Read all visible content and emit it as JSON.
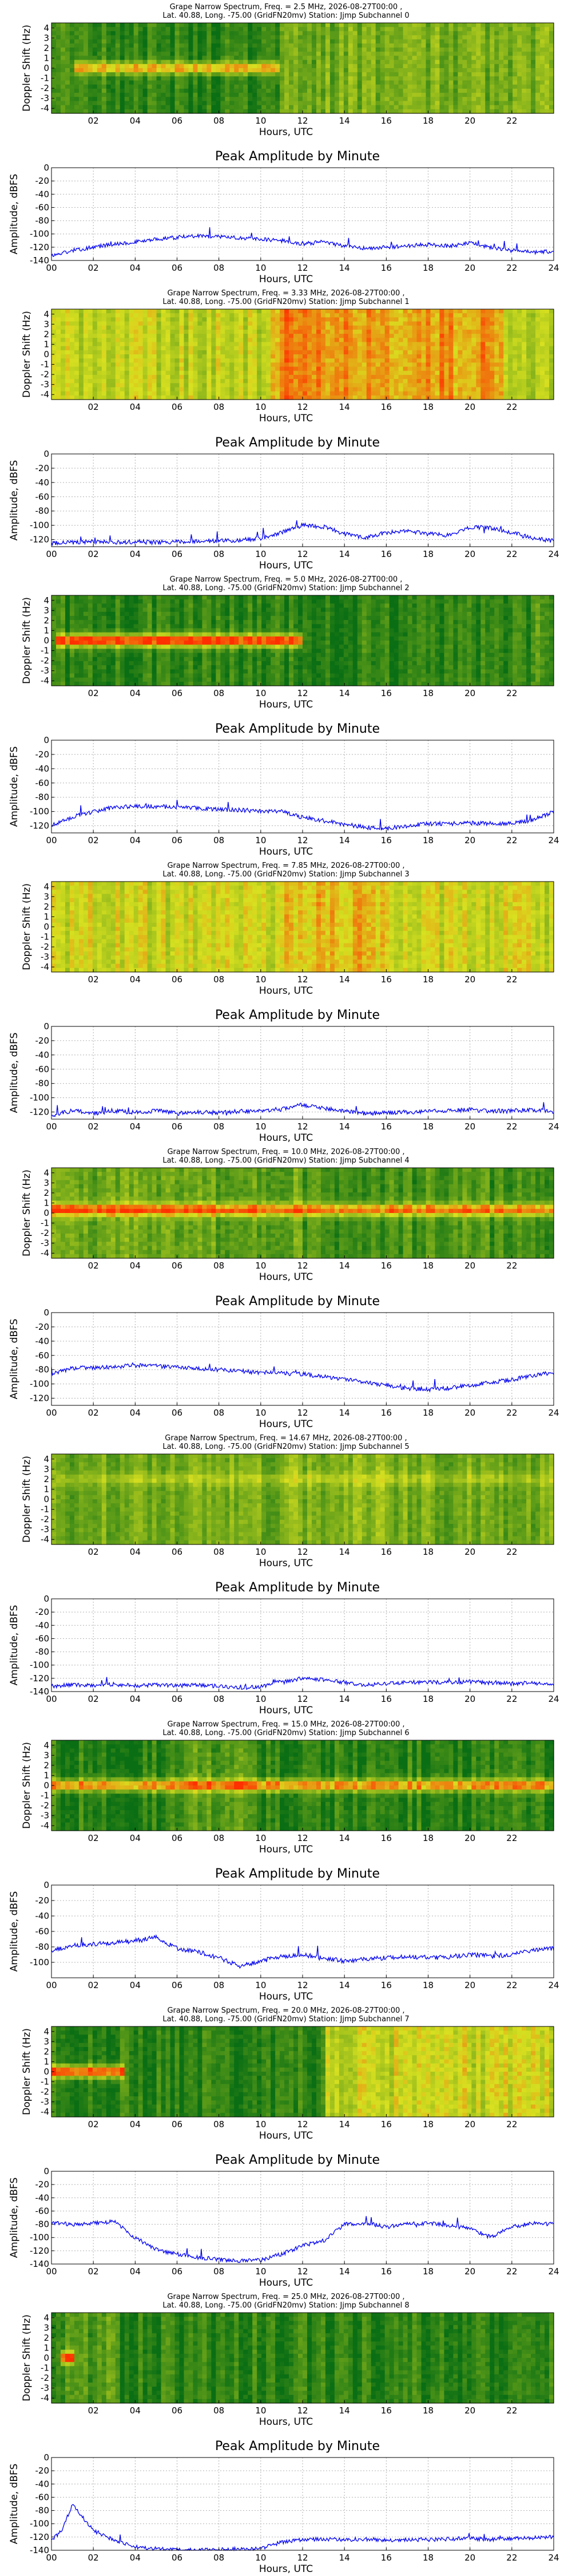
{
  "colors": {
    "line": "#0000ee",
    "grid": "#b0b0b0",
    "spectrum_low": "#0a6e14",
    "spectrum_mid": "#d8e020",
    "spectrum_high": "#ff3000"
  },
  "line_panel_title": "Peak Amplitude by Minute",
  "line_ylabel": "Amplitude, dBFS",
  "xlabel": "Hours, UTC",
  "spec_ylabel": "Doppler Shift (Hz)",
  "spec_xticks": [
    "02",
    "04",
    "06",
    "08",
    "10",
    "12",
    "14",
    "16",
    "18",
    "20",
    "22"
  ],
  "line_xticks": [
    "00",
    "02",
    "04",
    "06",
    "08",
    "10",
    "12",
    "14",
    "16",
    "18",
    "20",
    "22",
    "24"
  ],
  "channels": [
    {
      "title1": "Grape Narrow Spectrum, Freq. = 2.5 MHz, 2026-08-27T00:00 ,",
      "title2": "Lat.  40.88, Long. -75.00 (GridFN20mv) Station: Jjmp Subchannel 0",
      "spec_yticks": [
        "4",
        "3",
        "2",
        "1",
        "0",
        "-1",
        "-2",
        "-3",
        "-4"
      ],
      "line_yticks": [
        "0",
        "-20",
        "-40",
        "-60",
        "-80",
        "-100",
        "-120",
        "-140"
      ],
      "spectrum": {
        "base": 0.12,
        "band_start": 1.0,
        "band_end": 11.0,
        "band_strength": 0.65,
        "band_offset": 0.0,
        "active_start": 11.0,
        "active_end": 24,
        "active_level": 0.32
      },
      "chart_data": {
        "type": "line",
        "xlabel": "Hours, UTC",
        "ylabel": "Amplitude, dBFS",
        "xlim": [
          0,
          24
        ],
        "ylim": [
          -140,
          0
        ],
        "x": [
          0,
          1,
          2,
          3,
          4,
          5,
          6,
          7,
          8,
          9,
          10,
          11,
          12,
          13,
          14,
          15,
          16,
          17,
          18,
          19,
          20,
          21,
          22,
          23,
          24
        ],
        "values": [
          -133,
          -125,
          -120,
          -115,
          -112,
          -108,
          -105,
          -103,
          -104,
          -106,
          -108,
          -110,
          -115,
          -112,
          -118,
          -122,
          -120,
          -118,
          -116,
          -118,
          -114,
          -120,
          -125,
          -128,
          -126
        ]
      }
    },
    {
      "title1": "Grape Narrow Spectrum, Freq. = 3.33 MHz, 2026-08-27T00:00 ,",
      "title2": "Lat.  40.88, Long. -75.00 (GridFN20mv) Station: Jjmp Subchannel 1",
      "spec_yticks": [
        "4",
        "3",
        "2",
        "1",
        "0",
        "-1",
        "-2",
        "-3",
        "-4"
      ],
      "line_yticks": [
        "0",
        "-20",
        "-40",
        "-60",
        "-80",
        "-100",
        "-120"
      ],
      "spectrum": {
        "base": 0.52,
        "band_start": 0,
        "band_end": 0,
        "band_strength": 0,
        "band_offset": 0,
        "active_start": 10.5,
        "active_end": 21.5,
        "active_level": 0.78
      },
      "chart_data": {
        "type": "line",
        "xlabel": "Hours, UTC",
        "ylabel": "Amplitude, dBFS",
        "xlim": [
          0,
          24
        ],
        "ylim": [
          -130,
          0
        ],
        "x": [
          0,
          1,
          2,
          3,
          4,
          5,
          6,
          7,
          8,
          9,
          10,
          11,
          12,
          13,
          14,
          15,
          16,
          17,
          18,
          19,
          20,
          21,
          22,
          23,
          24
        ],
        "values": [
          -125,
          -124,
          -123,
          -124,
          -123,
          -124,
          -123,
          -122,
          -122,
          -121,
          -118,
          -110,
          -100,
          -102,
          -112,
          -118,
          -110,
          -108,
          -112,
          -114,
          -102,
          -104,
          -110,
          -118,
          -122
        ]
      }
    },
    {
      "title1": "Grape Narrow Spectrum, Freq. = 5.0 MHz, 2026-08-27T00:00 ,",
      "title2": "Lat.  40.88, Long. -75.00 (GridFN20mv) Station: Jjmp Subchannel 2",
      "spec_yticks": [
        "4",
        "3",
        "2",
        "1",
        "0",
        "-1",
        "-2",
        "-3",
        "-4"
      ],
      "line_yticks": [
        "0",
        "-20",
        "-40",
        "-60",
        "-80",
        "-100",
        "-120"
      ],
      "spectrum": {
        "base": 0.1,
        "band_start": 0.3,
        "band_end": 12.0,
        "band_strength": 0.95,
        "band_offset": 0.0,
        "active_start": 23.0,
        "active_end": 24,
        "active_level": 0.2
      },
      "chart_data": {
        "type": "line",
        "xlabel": "Hours, UTC",
        "ylabel": "Amplitude, dBFS",
        "xlim": [
          0,
          24
        ],
        "ylim": [
          -130,
          0
        ],
        "x": [
          0,
          1,
          2,
          3,
          4,
          5,
          6,
          7,
          8,
          9,
          10,
          11,
          12,
          13,
          14,
          15,
          16,
          17,
          18,
          19,
          20,
          21,
          22,
          23,
          24
        ],
        "values": [
          -120,
          -108,
          -100,
          -94,
          -93,
          -93,
          -94,
          -95,
          -97,
          -98,
          -99,
          -100,
          -108,
          -113,
          -118,
          -122,
          -124,
          -120,
          -117,
          -117,
          -116,
          -117,
          -116,
          -112,
          -100
        ]
      }
    },
    {
      "title1": "Grape Narrow Spectrum, Freq. = 7.85 MHz, 2026-08-27T00:00 ,",
      "title2": "Lat.  40.88, Long. -75.00 (GridFN20mv) Station: Jjmp Subchannel 3",
      "spec_yticks": [
        "4",
        "3",
        "2",
        "1",
        "0",
        "-1",
        "-2",
        "-3",
        "-4"
      ],
      "line_yticks": [
        "0",
        "-20",
        "-40",
        "-60",
        "-80",
        "-100",
        "-120"
      ],
      "spectrum": {
        "base": 0.55,
        "band_start": 0,
        "band_end": 0,
        "band_strength": 0,
        "band_offset": 0,
        "active_start": 11.0,
        "active_end": 16.0,
        "active_level": 0.66
      },
      "chart_data": {
        "type": "line",
        "xlabel": "Hours, UTC",
        "ylabel": "Amplitude, dBFS",
        "xlim": [
          0,
          24
        ],
        "ylim": [
          -130,
          0
        ],
        "x": [
          0,
          1,
          2,
          3,
          4,
          5,
          6,
          7,
          8,
          9,
          10,
          11,
          12,
          13,
          14,
          15,
          16,
          17,
          18,
          19,
          20,
          21,
          22,
          23,
          24
        ],
        "values": [
          -125,
          -118,
          -122,
          -118,
          -121,
          -118,
          -122,
          -120,
          -121,
          -119,
          -118,
          -116,
          -110,
          -115,
          -119,
          -122,
          -121,
          -120,
          -119,
          -118,
          -117,
          -119,
          -118,
          -117,
          -120
        ]
      }
    },
    {
      "title1": "Grape Narrow Spectrum, Freq. = 10.0 MHz, 2026-08-27T00:00 ,",
      "title2": "Lat.  40.88, Long. -75.00 (GridFN20mv) Station: Jjmp Subchannel 4",
      "spec_yticks": [
        "4",
        "3",
        "2",
        "1",
        "0",
        "-1",
        "-2",
        "-3",
        "-4"
      ],
      "line_yticks": [
        "0",
        "-20",
        "-40",
        "-60",
        "-80",
        "-100",
        "-120"
      ],
      "spectrum": {
        "base": 0.18,
        "band_start": 0.0,
        "band_end": 24.0,
        "band_strength": 0.7,
        "band_offset": 0.3,
        "active_start": 0,
        "active_end": 12,
        "active_level": 0.28
      },
      "chart_data": {
        "type": "line",
        "xlabel": "Hours, UTC",
        "ylabel": "Amplitude, dBFS",
        "xlim": [
          0,
          24
        ],
        "ylim": [
          -130,
          0
        ],
        "x": [
          0,
          1,
          2,
          3,
          4,
          5,
          6,
          7,
          8,
          9,
          10,
          11,
          12,
          13,
          14,
          15,
          16,
          17,
          18,
          19,
          20,
          21,
          22,
          23,
          24
        ],
        "values": [
          -85,
          -78,
          -77,
          -76,
          -74,
          -75,
          -77,
          -78,
          -80,
          -82,
          -84,
          -85,
          -86,
          -90,
          -94,
          -98,
          -102,
          -106,
          -108,
          -106,
          -102,
          -98,
          -94,
          -88,
          -84
        ]
      }
    },
    {
      "title1": "Grape Narrow Spectrum, Freq. = 14.67 MHz, 2026-08-27T00:00 ,",
      "title2": "Lat.  40.88, Long. -75.00 (GridFN20mv) Station: Jjmp Subchannel 5",
      "spec_yticks": [
        "4",
        "3",
        "2",
        "1",
        "0",
        "-1",
        "-2",
        "-3",
        "-4"
      ],
      "line_yticks": [
        "0",
        "-20",
        "-40",
        "-60",
        "-80",
        "-100",
        "-120",
        "-140"
      ],
      "spectrum": {
        "base": 0.3,
        "band_start": 0.2,
        "band_end": 24.0,
        "band_strength": 0.18,
        "band_offset": 2.0,
        "active_start": 11.0,
        "active_end": 16.0,
        "active_level": 0.35
      },
      "chart_data": {
        "type": "line",
        "xlabel": "Hours, UTC",
        "ylabel": "Amplitude, dBFS",
        "xlim": [
          0,
          24
        ],
        "ylim": [
          -140,
          0
        ],
        "x": [
          0,
          1,
          2,
          3,
          4,
          5,
          6,
          7,
          8,
          9,
          10,
          11,
          12,
          13,
          14,
          15,
          16,
          17,
          18,
          19,
          20,
          21,
          22,
          23,
          24
        ],
        "values": [
          -132,
          -130,
          -131,
          -129,
          -131,
          -130,
          -131,
          -130,
          -132,
          -134,
          -133,
          -125,
          -120,
          -122,
          -126,
          -130,
          -128,
          -126,
          -126,
          -126,
          -125,
          -127,
          -128,
          -127,
          -128
        ]
      }
    },
    {
      "title1": "Grape Narrow Spectrum, Freq. = 15.0 MHz, 2026-08-27T00:00 ,",
      "title2": "Lat.  40.88, Long. -75.00 (GridFN20mv) Station: Jjmp Subchannel 6",
      "spec_yticks": [
        "4",
        "3",
        "2",
        "1",
        "0",
        "-1",
        "-2",
        "-3",
        "-4"
      ],
      "line_yticks": [
        "0",
        "-20",
        "-40",
        "-60",
        "-80",
        "-100"
      ],
      "spectrum": {
        "base": 0.1,
        "band_start": 0.0,
        "band_end": 24.0,
        "band_strength": 0.75,
        "band_offset": 0.0,
        "active_start": 6.5,
        "active_end": 9.5,
        "active_level": 0.22
      },
      "chart_data": {
        "type": "line",
        "xlabel": "Hours, UTC",
        "ylabel": "Amplitude, dBFS",
        "xlim": [
          0,
          24
        ],
        "ylim": [
          -120,
          0
        ],
        "x": [
          0,
          1,
          2,
          3,
          4,
          5,
          6,
          7,
          8,
          9,
          10,
          11,
          12,
          13,
          14,
          15,
          16,
          17,
          18,
          19,
          20,
          21,
          22,
          23,
          24
        ],
        "values": [
          -85,
          -78,
          -76,
          -75,
          -72,
          -68,
          -82,
          -86,
          -94,
          -105,
          -98,
          -92,
          -90,
          -95,
          -98,
          -96,
          -94,
          -92,
          -94,
          -93,
          -90,
          -92,
          -90,
          -84,
          -82
        ]
      }
    },
    {
      "title1": "Grape Narrow Spectrum, Freq. = 20.0 MHz, 2026-08-27T00:00 ,",
      "title2": "Lat.  40.88, Long. -75.00 (GridFN20mv) Station: Jjmp Subchannel 7",
      "spec_yticks": [
        "4",
        "3",
        "2",
        "1",
        "0",
        "-1",
        "-2",
        "-3",
        "-4"
      ],
      "line_yticks": [
        "0",
        "-20",
        "-40",
        "-60",
        "-80",
        "-100",
        "-120",
        "-140"
      ],
      "spectrum": {
        "base": 0.1,
        "band_start": 0.0,
        "band_end": 3.5,
        "band_strength": 0.9,
        "band_offset": 0.0,
        "active_start": 13.0,
        "active_end": 24,
        "active_level": 0.55
      },
      "chart_data": {
        "type": "line",
        "xlabel": "Hours, UTC",
        "ylabel": "Amplitude, dBFS",
        "xlim": [
          0,
          24
        ],
        "ylim": [
          -140,
          0
        ],
        "x": [
          0,
          1,
          2,
          3,
          4,
          5,
          6,
          7,
          8,
          9,
          10,
          11,
          12,
          13,
          14,
          15,
          16,
          17,
          18,
          19,
          20,
          21,
          22,
          23,
          24
        ],
        "values": [
          -78,
          -80,
          -78,
          -76,
          -100,
          -118,
          -125,
          -130,
          -133,
          -135,
          -134,
          -125,
          -112,
          -105,
          -80,
          -78,
          -84,
          -80,
          -78,
          -82,
          -86,
          -100,
          -84,
          -78,
          -80
        ]
      }
    },
    {
      "title1": "Grape Narrow Spectrum, Freq. = 25.0 MHz, 2026-08-27T00:00 ,",
      "title2": "Lat.  40.88, Long. -75.00 (GridFN20mv) Station: Jjmp Subchannel 8",
      "spec_yticks": [
        "4",
        "3",
        "2",
        "1",
        "0",
        "-1",
        "-2",
        "-3",
        "-4"
      ],
      "line_yticks": [
        "0",
        "-20",
        "-40",
        "-60",
        "-80",
        "-100",
        "-120",
        "-140"
      ],
      "spectrum": {
        "base": 0.1,
        "band_start": 0.5,
        "band_end": 1.2,
        "band_strength": 0.85,
        "band_offset": 0.0,
        "active_start": 0,
        "active_end": 3,
        "active_level": 0.2
      },
      "chart_data": {
        "type": "line",
        "xlabel": "Hours, UTC",
        "ylabel": "Amplitude, dBFS",
        "xlim": [
          0,
          24
        ],
        "ylim": [
          -140,
          0
        ],
        "x": [
          0,
          0.5,
          1,
          1.5,
          2,
          3,
          4,
          5,
          6,
          7,
          8,
          9,
          10,
          11,
          12,
          13,
          14,
          15,
          16,
          17,
          18,
          19,
          20,
          21,
          22,
          23,
          24
        ],
        "values": [
          -125,
          -110,
          -70,
          -90,
          -110,
          -125,
          -135,
          -138,
          -139,
          -140,
          -139,
          -138,
          -137,
          -128,
          -124,
          -123,
          -124,
          -123,
          -125,
          -124,
          -124,
          -123,
          -122,
          -124,
          -122,
          -121,
          -120
        ]
      }
    }
  ]
}
